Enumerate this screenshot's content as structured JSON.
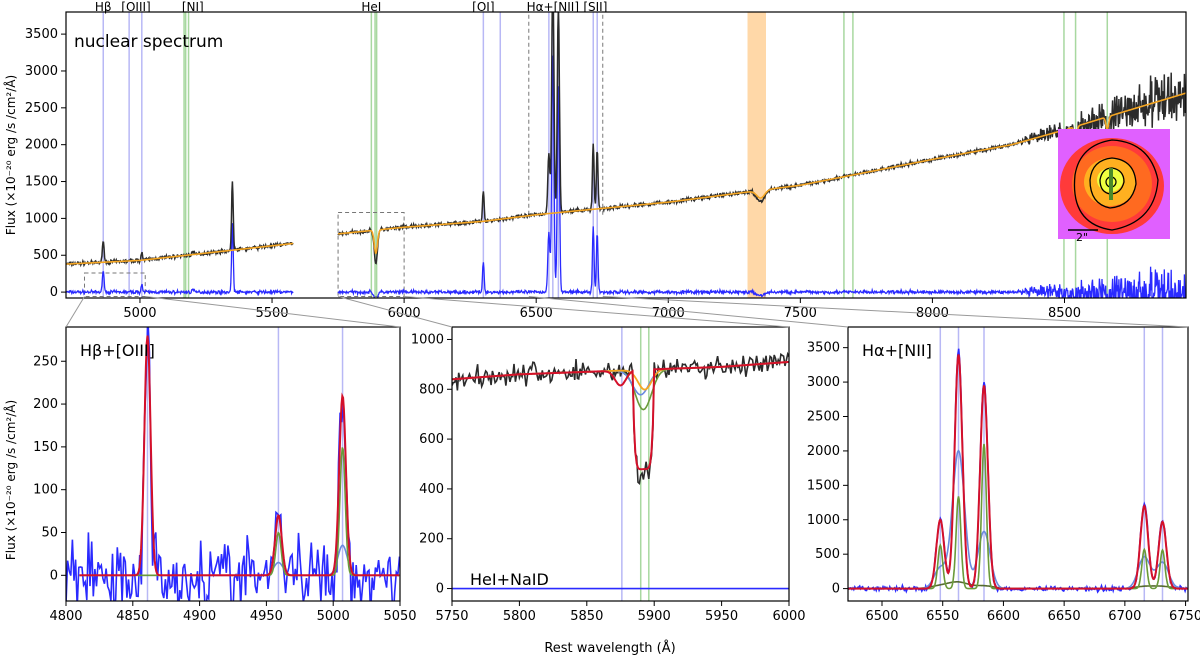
{
  "figure": {
    "top_panel_label": "nuclear spectrum",
    "y_axis_label": "Flux (×10⁻²⁰ erg /s /cm²/Å)",
    "x_axis_label": "Rest wavelength (Å)",
    "inset_scale_label": "2\"",
    "colors": {
      "observed": "#2b2b2b",
      "model": "#f5a623",
      "residual": "#2a2aff",
      "fit_total": "#d4102a",
      "comp_narrow": "#6a9a3a",
      "comp_broad": "#6a8ae0",
      "emission_marker": "#b8b8f5",
      "absorption_marker": "#a8d8a0",
      "masked_region": "#ffd8a8"
    }
  },
  "chart_data": [
    {
      "type": "line",
      "panel": "top",
      "title": "nuclear spectrum",
      "xlabel": "",
      "ylabel": "Flux (×10⁻²⁰ erg /s /cm²/Å)",
      "xlim": [
        4720,
        8960
      ],
      "ylim": [
        -80,
        3800
      ],
      "xticks": [
        5000,
        5500,
        6000,
        6500,
        7000,
        7500,
        8000,
        8500
      ],
      "yticks": [
        0,
        500,
        1000,
        1500,
        2000,
        2500,
        3000,
        3500
      ],
      "line_labels": [
        {
          "text": "Hβ",
          "x": 4861
        },
        {
          "text": "[OIII]",
          "x": 4985
        },
        {
          "text": "[NI]",
          "x": 5200
        },
        {
          "text": "HeI",
          "x": 5876
        },
        {
          "text": "[OI]",
          "x": 6300
        },
        {
          "text": "Hα+[NII]",
          "x": 6563
        },
        {
          "text": "[SII]",
          "x": 6724
        }
      ],
      "emission_lines": [
        4861,
        4959,
        5007,
        6300,
        6364,
        6548,
        6563,
        6584,
        6716,
        6731
      ],
      "absorption_lines": [
        5167,
        5173,
        5184,
        5876,
        5890,
        5896,
        7665,
        7699,
        8498,
        8542,
        8662
      ],
      "masked_region": [
        7300,
        7370
      ],
      "dashed_lines": [
        6472,
        6752
      ],
      "continuum": {
        "x": [
          4720,
          5000,
          5580,
          5750,
          6000,
          6300,
          6500,
          7000,
          7500,
          8000,
          8300,
          8500,
          8700,
          8960
        ],
        "y": [
          380,
          430,
          660,
          790,
          880,
          960,
          1050,
          1220,
          1450,
          1800,
          2000,
          2200,
          2420,
          2700
        ]
      },
      "gap": [
        5580,
        5750
      ],
      "emission_peaks": [
        {
          "x": 4861,
          "peak": 320
        },
        {
          "x": 5007,
          "peak": 100
        },
        {
          "x": 5200,
          "peak": 40
        },
        {
          "x": 5350,
          "peak": 950
        },
        {
          "x": 6300,
          "peak": 400
        },
        {
          "x": 6548,
          "peak": 800
        },
        {
          "x": 6563,
          "peak": 3300
        },
        {
          "x": 6584,
          "peak": 2800
        },
        {
          "x": 6716,
          "peak": 900
        },
        {
          "x": 6731,
          "peak": 800
        }
      ]
    },
    {
      "type": "line",
      "panel": "bottom-left",
      "title": "Hβ+[OIII]",
      "xlabel": "",
      "ylabel": "Flux (×10⁻²⁰ erg /s /cm²/Å)",
      "xlim": [
        4800,
        5050
      ],
      "ylim": [
        -30,
        290
      ],
      "xticks": [
        4800,
        4850,
        4900,
        4950,
        5000,
        5050
      ],
      "yticks": [
        0,
        50,
        100,
        150,
        200,
        250
      ],
      "marker_lines": [
        4861,
        4959,
        5007
      ],
      "series": [
        {
          "role": "fit_total",
          "peaks": [
            {
              "x": 4861,
              "amp": 280,
              "w": 2.3
            },
            {
              "x": 4959,
              "amp": 70,
              "w": 2.5
            },
            {
              "x": 5007,
              "amp": 210,
              "w": 2.5
            }
          ]
        },
        {
          "role": "narrow",
          "peaks": [
            {
              "x": 4959,
              "amp": 50,
              "w": 2
            },
            {
              "x": 5007,
              "amp": 150,
              "w": 2
            }
          ]
        },
        {
          "role": "broad",
          "peaks": [
            {
              "x": 4959,
              "amp": 15,
              "w": 3.5
            },
            {
              "x": 5007,
              "amp": 35,
              "w": 3.5
            }
          ]
        }
      ]
    },
    {
      "type": "line",
      "panel": "bottom-center",
      "title": "HeI+NaID",
      "xlabel": "Rest wavelength (Å)",
      "ylabel": "",
      "xlim": [
        5750,
        6000
      ],
      "ylim": [
        -50,
        1050
      ],
      "xticks": [
        5750,
        5800,
        5850,
        5900,
        5950,
        6000
      ],
      "yticks": [
        0,
        200,
        400,
        600,
        800,
        1000
      ],
      "marker_lines": [
        5876,
        5890,
        5896
      ],
      "continuum_points": {
        "x": [
          5750,
          5800,
          5850,
          5900,
          5950,
          6000
        ],
        "y": [
          840,
          860,
          870,
          880,
          890,
          910
        ]
      },
      "absorption_depth": 420
    },
    {
      "type": "line",
      "panel": "bottom-right",
      "title": "Hα+[NII]",
      "xlabel": "",
      "ylabel": "",
      "xlim": [
        6472,
        6752
      ],
      "ylim": [
        -180,
        3800
      ],
      "xticks": [
        6500,
        6550,
        6600,
        6650,
        6700,
        6750
      ],
      "yticks": [
        0,
        500,
        1000,
        1500,
        2000,
        2500,
        3000,
        3500
      ],
      "marker_lines": [
        6548,
        6563,
        6584,
        6716,
        6731
      ],
      "series": [
        {
          "role": "fit_total",
          "peaks": [
            {
              "x": 6548,
              "amp": 1000,
              "w": 3.2
            },
            {
              "x": 6563,
              "amp": 3400,
              "w": 3.2
            },
            {
              "x": 6584,
              "amp": 2950,
              "w": 3.2
            },
            {
              "x": 6716,
              "amp": 1200,
              "w": 3.2
            },
            {
              "x": 6731,
              "amp": 970,
              "w": 3.2
            }
          ]
        },
        {
          "role": "narrow",
          "peaks": [
            {
              "x": 6548,
              "amp": 630,
              "w": 2
            },
            {
              "x": 6563,
              "amp": 1340,
              "w": 2
            },
            {
              "x": 6584,
              "amp": 2100,
              "w": 2
            },
            {
              "x": 6716,
              "amp": 570,
              "w": 2
            },
            {
              "x": 6731,
              "amp": 560,
              "w": 2
            }
          ]
        },
        {
          "role": "broad",
          "peaks": [
            {
              "x": 6548,
              "amp": 300,
              "w": 5
            },
            {
              "x": 6563,
              "amp": 2000,
              "w": 5
            },
            {
              "x": 6584,
              "amp": 830,
              "w": 5
            },
            {
              "x": 6716,
              "amp": 460,
              "w": 5
            },
            {
              "x": 6731,
              "amp": 380,
              "w": 5
            }
          ]
        },
        {
          "role": "outflow",
          "peaks": [
            {
              "x": 6548,
              "amp": 40,
              "w": 8
            },
            {
              "x": 6563,
              "amp": 90,
              "w": 8
            },
            {
              "x": 6584,
              "amp": 40,
              "w": 8
            },
            {
              "x": 6716,
              "amp": 30,
              "w": 8
            },
            {
              "x": 6731,
              "amp": 30,
              "w": 8
            }
          ]
        }
      ]
    }
  ]
}
